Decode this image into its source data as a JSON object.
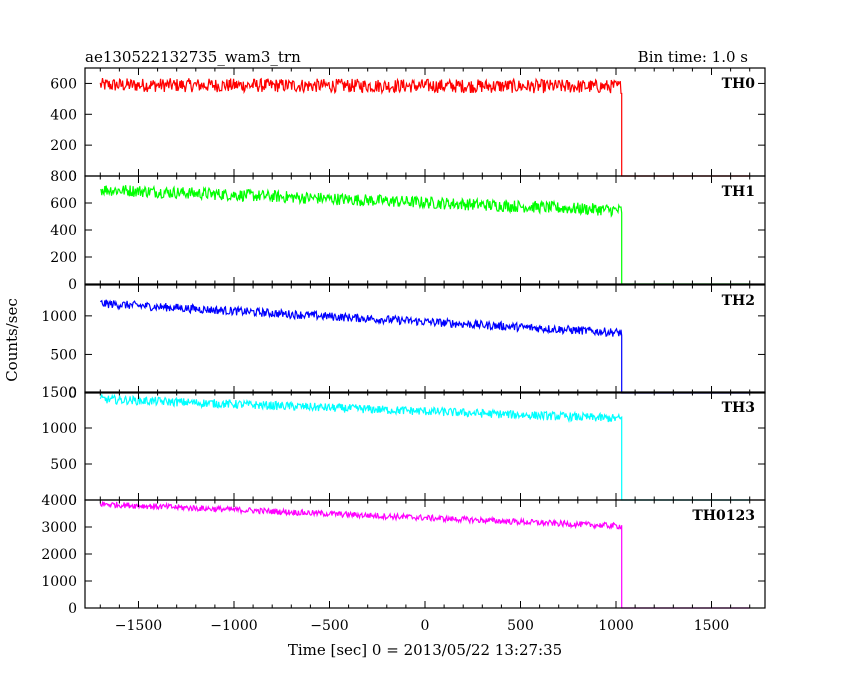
{
  "header": {
    "title": "ae130522132735_wam3_trn",
    "bin_time": "Bin time: 1.0 s"
  },
  "axes": {
    "ylabel": "Counts/sec",
    "xlabel": "Time [sec] 0 = 2013/05/22 13:27:35"
  },
  "chart_data": [
    {
      "type": "line",
      "name": "TH0",
      "color": "#ff0000",
      "xlim": [
        -1780,
        1780
      ],
      "ylim": [
        0,
        700
      ],
      "yticks": [
        200,
        400,
        600
      ],
      "ytick_labels": [
        "200",
        "400",
        "600"
      ],
      "xticks": [
        -1500,
        -1000,
        -500,
        0,
        500,
        1000,
        1500
      ],
      "xtick_labels": [],
      "x_start": -1700,
      "x_drop": 1030,
      "x_end": 1700,
      "level_start": 590,
      "level_end": 580,
      "noise": 45,
      "level_after": 0
    },
    {
      "type": "line",
      "name": "TH1",
      "color": "#00ff00",
      "xlim": [
        -1780,
        1780
      ],
      "ylim": [
        0,
        800
      ],
      "yticks": [
        200,
        400,
        600,
        800
      ],
      "ytick_labels": [
        "200",
        "400",
        "600",
        "800"
      ],
      "xticks": [
        -1500,
        -1000,
        -500,
        0,
        500,
        1000,
        1500
      ],
      "xtick_labels": [],
      "x_start": -1700,
      "x_drop": 1030,
      "x_end": 1700,
      "level_start": 700,
      "level_end": 545,
      "noise": 45,
      "level_after": 0
    },
    {
      "type": "line",
      "name": "TH2",
      "color": "#0000ff",
      "xlim": [
        -1780,
        1780
      ],
      "ylim": [
        0,
        1400
      ],
      "yticks": [
        500,
        1000
      ],
      "ytick_labels": [
        "500",
        "1000"
      ],
      "xticks": [
        -1500,
        -1000,
        -500,
        0,
        500,
        1000,
        1500
      ],
      "xtick_labels": [],
      "x_start": -1700,
      "x_drop": 1030,
      "x_end": 1700,
      "level_start": 1160,
      "level_end": 780,
      "noise": 55,
      "level_after": 0
    },
    {
      "type": "line",
      "name": "TH3",
      "color": "#00ffff",
      "xlim": [
        -1780,
        1780
      ],
      "ylim": [
        0,
        1500
      ],
      "yticks": [
        500,
        1000,
        1500
      ],
      "ytick_labels": [
        "500",
        "1000",
        "1500"
      ],
      "xticks": [
        -1500,
        -1000,
        -500,
        0,
        500,
        1000,
        1500
      ],
      "xtick_labels": [],
      "x_start": -1700,
      "x_drop": 1030,
      "x_end": 1700,
      "level_start": 1400,
      "level_end": 1130,
      "noise": 60,
      "level_after": 0
    },
    {
      "type": "line",
      "name": "TH0123",
      "color": "#ff00ff",
      "xlim": [
        -1780,
        1780
      ],
      "ylim": [
        0,
        4000
      ],
      "yticks": [
        0,
        1000,
        2000,
        3000,
        4000
      ],
      "ytick_labels": [
        "0",
        "1000",
        "2000",
        "3000",
        "4000"
      ],
      "xticks": [
        -1500,
        -1000,
        -500,
        0,
        500,
        1000,
        1500
      ],
      "xtick_labels": [
        "−1500",
        "−1000",
        "−500",
        "0",
        "500",
        "1000",
        "1500"
      ],
      "x_start": -1700,
      "x_drop": 1030,
      "x_end": 1700,
      "level_start": 3850,
      "level_end": 3030,
      "noise": 110,
      "level_after": 0
    }
  ],
  "zero_labels": [
    "0",
    "0",
    "0",
    "0"
  ]
}
